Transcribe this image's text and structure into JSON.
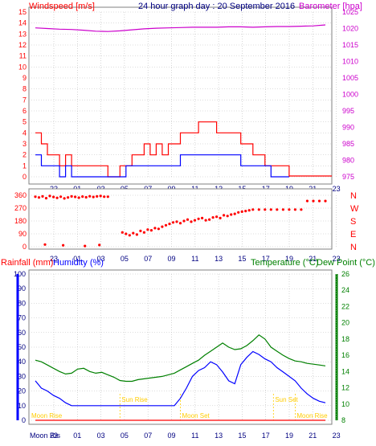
{
  "header": {
    "windspeed_label": "Windspeed [m/s]",
    "title": "24 hour graph day : 20 September 2016",
    "barometer_label": "Barometer [hpa]"
  },
  "panel2": {
    "direction_labels": [
      "N",
      "W",
      "S",
      "E",
      "N"
    ]
  },
  "panel3": {
    "rainfall_label": "Rainfall (mm)",
    "humidity_label": "Humidity (%)",
    "temperature_label": "Temperature (°C)",
    "dewpoint_label": "Dew Point (°C)",
    "events": [
      {
        "label": "Moon Rise",
        "x": 20.5
      },
      {
        "label": "Moon Rise",
        "x": 0.0
      },
      {
        "label": "Sun Rise",
        "x": 7.0
      },
      {
        "label": "Moon Set",
        "x": 12.0
      },
      {
        "label": "Sun Set",
        "x": 19.7
      },
      {
        "label": "Moon Rise",
        "x": 21.5
      }
    ],
    "moon_label_bottom": "Moon Ris"
  },
  "colors": {
    "wind": "#ff0000",
    "gust": "#0000ff",
    "barometer": "#cc00cc",
    "direction": "#ff0000",
    "humidity": "#0000ff",
    "temperature": "#008000",
    "rainfall": "#ff0000",
    "events": "#ffcc00",
    "grid": "#bbbbbb"
  },
  "chart_data": [
    {
      "type": "line",
      "x_tick_labels": [
        "23",
        "01",
        "03",
        "05",
        "07",
        "09",
        "11",
        "13",
        "15",
        "17",
        "19",
        "21",
        "23"
      ],
      "y_left_ticks": [
        "0",
        "1",
        "2",
        "3",
        "4",
        "5",
        "6",
        "7",
        "8",
        "9",
        "10",
        "11",
        "12",
        "13",
        "14",
        "15"
      ],
      "y_right_ticks": [
        "975",
        "980",
        "985",
        "990",
        "995",
        "1000",
        "1005",
        "1010",
        "1015",
        "1020",
        "1025"
      ],
      "ylim_left": [
        0,
        15
      ],
      "ylim_right": [
        975,
        1025
      ],
      "series": [
        {
          "name": "Windspeed [m/s]",
          "x": [
            0,
            0.5,
            1,
            1.5,
            2,
            2.5,
            3,
            3.5,
            4,
            4.5,
            5,
            5.5,
            6,
            6.5,
            7,
            7.5,
            8,
            8.5,
            9,
            9.5,
            10,
            10.5,
            11,
            11.5,
            12,
            12.5,
            13,
            13.5,
            14,
            14.5,
            15,
            15.5,
            16,
            16.5,
            17,
            17.5,
            18,
            18.5,
            19,
            19.5,
            20,
            20.5,
            21
          ],
          "values": [
            4,
            3,
            2,
            2,
            1,
            2,
            1,
            1,
            1,
            1,
            1,
            1,
            0,
            0,
            1,
            1,
            2,
            2,
            3,
            2,
            3,
            2,
            3,
            3,
            4,
            4,
            4,
            5,
            5,
            5,
            4,
            4,
            4,
            4,
            3,
            3,
            2,
            2,
            1,
            1,
            1,
            1,
            0
          ]
        },
        {
          "name": "Gust",
          "x": [
            0,
            0.5,
            1,
            1.5,
            2,
            2.5,
            3,
            3.5,
            4,
            4.5,
            5,
            5.5,
            6,
            6.5,
            7,
            7.5,
            8,
            8.5,
            9,
            9.5,
            10,
            10.5,
            11,
            11.5,
            12,
            12.5,
            13,
            13.5,
            14,
            14.5,
            15,
            15.5,
            16,
            16.5,
            17,
            17.5,
            18,
            18.5,
            19,
            19.5,
            20,
            20.5,
            21
          ],
          "values": [
            2,
            1,
            1,
            1,
            0,
            1,
            0,
            0,
            0,
            0,
            0,
            0,
            0,
            0,
            0,
            1,
            1,
            1,
            1,
            1,
            1,
            1,
            1,
            1,
            2,
            2,
            2,
            2,
            2,
            2,
            2,
            2,
            2,
            2,
            1,
            1,
            1,
            1,
            1,
            0,
            0,
            0,
            0
          ]
        },
        {
          "name": "Barometer [hpa]",
          "axis": "right",
          "x": [
            0,
            1,
            2,
            3,
            4,
            5,
            6,
            7,
            8,
            9,
            10,
            11,
            12,
            13,
            14,
            15,
            16,
            17,
            18,
            19,
            20,
            21,
            22,
            23,
            24
          ],
          "values": [
            1020.2,
            1020.0,
            1019.8,
            1019.7,
            1019.5,
            1019.2,
            1019.1,
            1019.3,
            1019.6,
            1019.9,
            1020.1,
            1020.2,
            1020.3,
            1020.4,
            1020.4,
            1020.4,
            1020.5,
            1020.5,
            1020.4,
            1020.5,
            1020.6,
            1020.6,
            1020.7,
            1020.8,
            1021.1
          ]
        }
      ]
    },
    {
      "type": "scatter",
      "x_tick_labels": [
        "23",
        "01",
        "03",
        "05",
        "07",
        "09",
        "11",
        "13",
        "15",
        "17",
        "19",
        "21",
        "23"
      ],
      "y_ticks": [
        "0",
        "90",
        "180",
        "270",
        "360"
      ],
      "ylim": [
        0,
        360
      ],
      "series": [
        {
          "name": "Wind direction",
          "x": [
            0,
            0.3,
            0.6,
            0.9,
            1.2,
            1.5,
            1.8,
            2.1,
            2.4,
            2.7,
            3,
            3.3,
            3.6,
            3.9,
            4.2,
            4.5,
            4.8,
            5.1,
            5.4,
            5.7,
            6.0,
            0.8,
            2.3,
            4.1,
            5.3,
            7.2,
            7.5,
            7.8,
            8.1,
            8.4,
            8.7,
            9.0,
            9.3,
            9.6,
            9.9,
            10.2,
            10.5,
            10.8,
            11.1,
            11.4,
            11.7,
            12.0,
            12.3,
            12.6,
            12.9,
            13.2,
            13.5,
            13.8,
            14.1,
            14.4,
            14.7,
            15.0,
            15.3,
            15.6,
            15.9,
            16.2,
            16.5,
            16.8,
            17.1,
            17.4,
            17.7,
            18.0,
            18.5,
            19.0,
            19.5,
            20.0,
            20.5,
            21.0,
            21.5,
            22.0,
            22.5,
            23.0,
            23.5,
            24.0
          ],
          "values": [
            350,
            345,
            352,
            340,
            355,
            348,
            342,
            350,
            338,
            345,
            352,
            349,
            343,
            351,
            346,
            353,
            348,
            352,
            355,
            350,
            350,
            15,
            10,
            5,
            12,
            100,
            90,
            80,
            95,
            85,
            110,
            100,
            120,
            115,
            130,
            125,
            140,
            150,
            160,
            170,
            175,
            165,
            180,
            190,
            175,
            185,
            195,
            200,
            185,
            190,
            205,
            210,
            200,
            220,
            215,
            225,
            230,
            240,
            245,
            250,
            255,
            260,
            260,
            260,
            260,
            260,
            260,
            260,
            260,
            260,
            320,
            320,
            320,
            320
          ]
        }
      ]
    },
    {
      "type": "line",
      "x_tick_labels": [
        "23",
        "01",
        "03",
        "05",
        "07",
        "09",
        "11",
        "13",
        "15",
        "17",
        "19",
        "21",
        "23"
      ],
      "y_left_ticks": [
        "0",
        "10",
        "20",
        "30",
        "40",
        "50",
        "60",
        "70",
        "80",
        "90",
        "100"
      ],
      "y_right_ticks": [
        "8",
        "10",
        "12",
        "14",
        "16",
        "18",
        "20",
        "22",
        "24",
        "26"
      ],
      "ylim_left": [
        0,
        100
      ],
      "ylim_right": [
        8,
        26
      ],
      "series": [
        {
          "name": "Humidity (%)",
          "axis": "left",
          "x": [
            0,
            0.5,
            1,
            1.5,
            2,
            2.5,
            3,
            4,
            5,
            6,
            7,
            8,
            9,
            10,
            11,
            11.5,
            12,
            12.5,
            13,
            13.5,
            14,
            14.5,
            15,
            15.5,
            16,
            16.5,
            17,
            17.5,
            18,
            18.5,
            19,
            19.5,
            20,
            20.5,
            21,
            21.5,
            22,
            22.5,
            23,
            23.5,
            24
          ],
          "values": [
            27,
            22,
            20,
            17,
            15,
            12,
            10,
            10,
            10,
            10,
            10,
            10,
            10,
            10,
            10,
            10,
            15,
            22,
            30,
            34,
            36,
            40,
            38,
            33,
            27,
            25,
            38,
            43,
            47,
            45,
            42,
            40,
            36,
            33,
            30,
            27,
            22,
            18,
            15,
            13,
            12
          ]
        },
        {
          "name": "Temperature (°C)",
          "axis": "right",
          "x": [
            0,
            0.5,
            1,
            1.5,
            2,
            2.5,
            3,
            3.5,
            4,
            4.5,
            5,
            5.5,
            6,
            6.5,
            7,
            7.5,
            8,
            8.5,
            9,
            9.5,
            10,
            10.5,
            11,
            11.5,
            12,
            12.5,
            13,
            13.5,
            14,
            14.5,
            15,
            15.5,
            16,
            16.5,
            17,
            17.5,
            18,
            18.5,
            19,
            19.5,
            20,
            20.5,
            21,
            21.5,
            22,
            22.5,
            23,
            23.5,
            24
          ],
          "values": [
            15.4,
            15.2,
            14.8,
            14.4,
            14.0,
            13.7,
            13.8,
            14.3,
            14.4,
            14.0,
            13.8,
            13.9,
            13.6,
            13.3,
            12.9,
            12.8,
            12.8,
            13.0,
            13.1,
            13.2,
            13.3,
            13.4,
            13.6,
            13.8,
            14.2,
            14.6,
            15.0,
            15.4,
            16.0,
            16.5,
            17.0,
            17.5,
            17.0,
            16.7,
            16.8,
            17.2,
            17.8,
            18.5,
            18.0,
            17.0,
            16.5,
            16.0,
            15.6,
            15.3,
            15.2,
            15.0,
            14.9,
            14.8,
            14.7
          ]
        },
        {
          "name": "Dew Point (°C)",
          "axis": "right",
          "x": [],
          "values": []
        },
        {
          "name": "Rainfall (mm)",
          "axis": "left",
          "x": [
            0,
            24
          ],
          "values": [
            0,
            0
          ]
        }
      ]
    }
  ]
}
